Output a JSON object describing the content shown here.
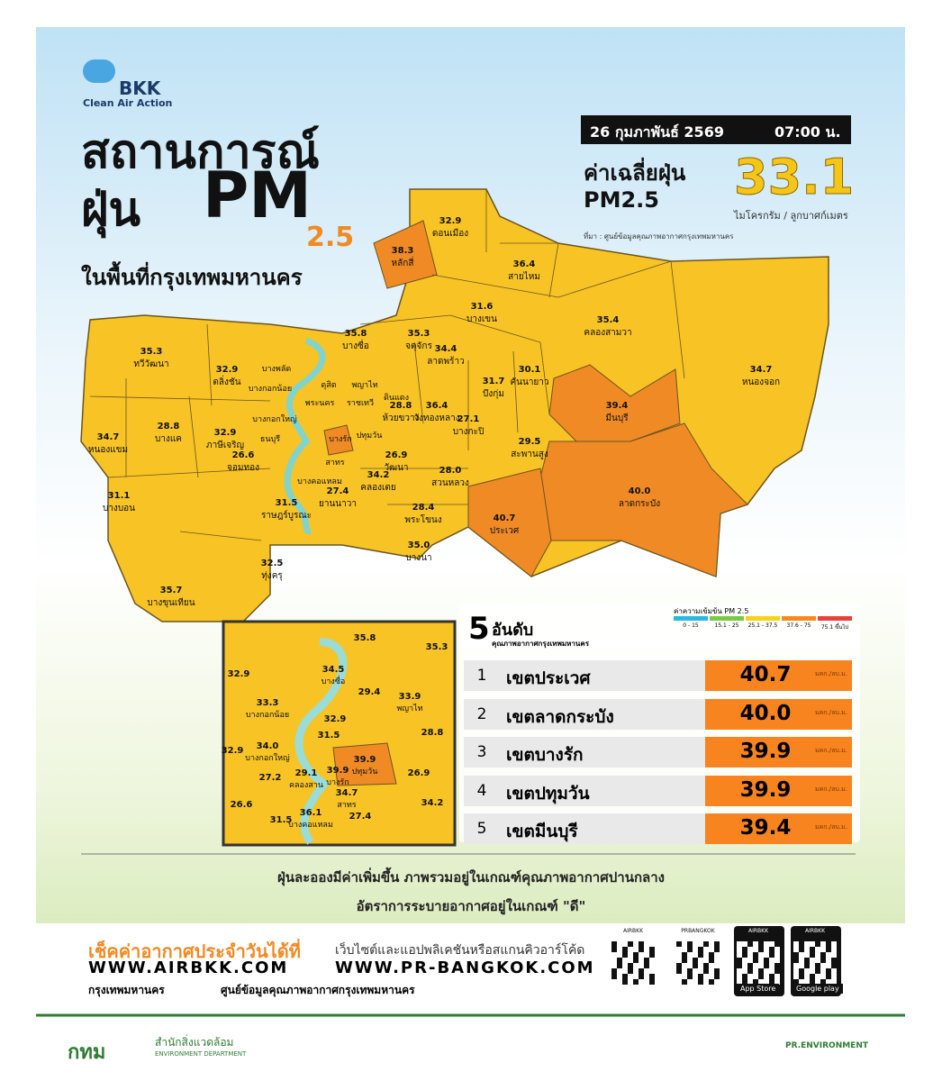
{
  "header": {
    "brand": "BKK",
    "brand_sub": "Clean Air Action",
    "title_line1": "สถานการณ์",
    "title_line2": "ฝุ่น",
    "title_pm": "PM",
    "title_sub": "2.5",
    "title_line3": "ในพื้นที่กรุงเทพมหานคร"
  },
  "summary": {
    "date": "26 กุมภาพันธ์ 2569",
    "time": "07:00 น.",
    "label_line1": "ค่าเฉลี่ยฝุ่น",
    "label_line2": "PM2.5",
    "value": "33.1",
    "unit": "ไมโครกรัม / ลูกบาศก์เมตร",
    "source": "ที่มา : ศูนย์ข้อมูลคุณภาพอากาศกรุงเทพมหานคร"
  },
  "map": {
    "districts": [
      {
        "value": "32.9",
        "name": "ดอนเมือง"
      },
      {
        "value": "38.3",
        "name": "หลักสี่"
      },
      {
        "value": "36.4",
        "name": "สายไหม"
      },
      {
        "value": "31.6",
        "name": "บางเขน"
      },
      {
        "value": "35.4",
        "name": "คลองสามวา"
      },
      {
        "value": "34.7",
        "name": "หนองจอก"
      },
      {
        "value": "35.8",
        "name": "บางซื่อ"
      },
      {
        "value": "35.3",
        "name": "จตุจักร"
      },
      {
        "value": "34.4",
        "name": "ลาดพร้าว"
      },
      {
        "value": "35.3",
        "name": "ทวีวัฒนา"
      },
      {
        "value": "32.9",
        "name": "ตลิ่งชัน"
      },
      {
        "value": "31.7",
        "name": "บึงกุ่ม"
      },
      {
        "value": "30.1",
        "name": "คันนายาว"
      },
      {
        "value": "39.4",
        "name": "มีนบุรี"
      },
      {
        "value": "36.4",
        "name": "วังทองหลาง"
      },
      {
        "value": "28.8",
        "name": "ห้วยขวาง"
      },
      {
        "value": "27.1",
        "name": "บางกะปิ"
      },
      {
        "value": "34.7",
        "name": "หนองแขม"
      },
      {
        "value": "28.8",
        "name": "บางแค"
      },
      {
        "value": "32.9",
        "name": "ภาษีเจริญ"
      },
      {
        "value": "29.5",
        "name": "สะพานสูง"
      },
      {
        "value": "26.9",
        "name": "วัฒนา"
      },
      {
        "value": "28.0",
        "name": "สวนหลวง"
      },
      {
        "value": "34.2",
        "name": "คลองเตย"
      },
      {
        "value": "40.0",
        "name": "ลาดกระบัง"
      },
      {
        "value": "26.6",
        "name": "จอมทอง"
      },
      {
        "value": "31.1",
        "name": "บางบอน"
      },
      {
        "value": "31.5",
        "name": "ราษฎร์บูรณะ"
      },
      {
        "value": "27.4",
        "name": "ยานนาวา"
      },
      {
        "value": "28.4",
        "name": "พระโขนง"
      },
      {
        "value": "40.7",
        "name": "ประเวศ"
      },
      {
        "value": "35.0",
        "name": "บางนา"
      },
      {
        "value": "32.5",
        "name": "ทุ่งครุ"
      },
      {
        "value": "35.7",
        "name": "บางขุนเทียน"
      }
    ],
    "inner_names": [
      "บางพลัด",
      "บางกอกน้อย",
      "ดุสิต",
      "พญาไท",
      "ราชเทวี",
      "ดินแดง",
      "พระนคร",
      "บางกอกใหญ่",
      "ธนบุรี",
      "บางรัก",
      "ปทุมวัน",
      "สาทร",
      "บางคอแหลม"
    ],
    "inset": [
      {
        "value": "35.8"
      },
      {
        "value": "35.3"
      },
      {
        "value": "32.9"
      },
      {
        "value": "34.5",
        "name": "บางซื่อ"
      },
      {
        "value": "29.4"
      },
      {
        "value": "33.9",
        "name": "พญาไท"
      },
      {
        "value": "33.3",
        "name": "บางกอกน้อย"
      },
      {
        "value": "28.8"
      },
      {
        "value": "34.0",
        "name": "บางกอกใหญ่"
      },
      {
        "value": "32.9"
      },
      {
        "value": "31.5"
      },
      {
        "value": "39.9",
        "name": "ปทุมวัน"
      },
      {
        "value": "32.9"
      },
      {
        "value": "27.2"
      },
      {
        "value": "29.1",
        "name": "คลองสาน"
      },
      {
        "value": "39.9",
        "name": "บางรัก"
      },
      {
        "value": "26.9"
      },
      {
        "value": "26.6"
      },
      {
        "value": "34.7",
        "name": "สาทร"
      },
      {
        "value": "36.1",
        "name": "บางคอแหลม"
      },
      {
        "value": "27.4"
      },
      {
        "value": "34.2"
      },
      {
        "value": "31.5"
      }
    ]
  },
  "legend": {
    "title": "ค่าความเข้มข้น PM 2.5",
    "bins": [
      {
        "range": "0 - 15",
        "color": "#2ab7e0"
      },
      {
        "range": "15.1 - 25",
        "color": "#7ac943"
      },
      {
        "range": "25.1 - 37.5",
        "color": "#f5d21c"
      },
      {
        "range": "37.6 - 75",
        "color": "#f5891f"
      },
      {
        "range": "75.1 ขึ้นไป",
        "color": "#e8413c"
      }
    ]
  },
  "ranking": {
    "number": "5",
    "title": "อันดับ",
    "subtitle": "คุณภาพอากาศกรุงเทพมหานคร",
    "unit": "มคก./ลบ.ม.",
    "rows": [
      {
        "rank": "1",
        "name": "เขตประเวศ",
        "value": "40.7"
      },
      {
        "rank": "2",
        "name": "เขตลาดกระบัง",
        "value": "40.0"
      },
      {
        "rank": "3",
        "name": "เขตบางรัก",
        "value": "39.9"
      },
      {
        "rank": "4",
        "name": "เขตปทุมวัน",
        "value": "39.9"
      },
      {
        "rank": "5",
        "name": "เขตมีนบุรี",
        "value": "39.4"
      }
    ]
  },
  "notes": [
    "ฝุ่นละอองมีค่าเพิ่มขึ้น ภาพรวมอยู่ในเกณฑ์คุณภาพอากาศปานกลาง",
    "อัตราการระบายอากาศอยู่ในเกณฑ์ \"ดี\""
  ],
  "contact": {
    "heading": "เช็คค่าอากาศประจำวันได้ที่",
    "subheading": "เว็บไซต์และแอปพลิเคชันหรือสแกนคิวอาร์โค้ด",
    "web1": "WWW.AIRBKK.COM",
    "web2": "WWW.PR-BANGKOK.COM",
    "fb1": "กรุงเทพมหานคร",
    "fb2": "ศูนย์ข้อมูลคุณภาพอากาศกรุงเทพมหานคร",
    "qr_labels": [
      "AIRBKK",
      "PRBANGKOK",
      "AIRBKK",
      "AIRBKK"
    ],
    "store1": "App Store",
    "store2": "Google play"
  },
  "footer": {
    "logo": "กทม",
    "dept": "สำนักสิ่งแวดล้อม",
    "dept_en": "ENVIRONMENT DEPARTMENT",
    "social": "PR.ENVIRONMENT"
  }
}
